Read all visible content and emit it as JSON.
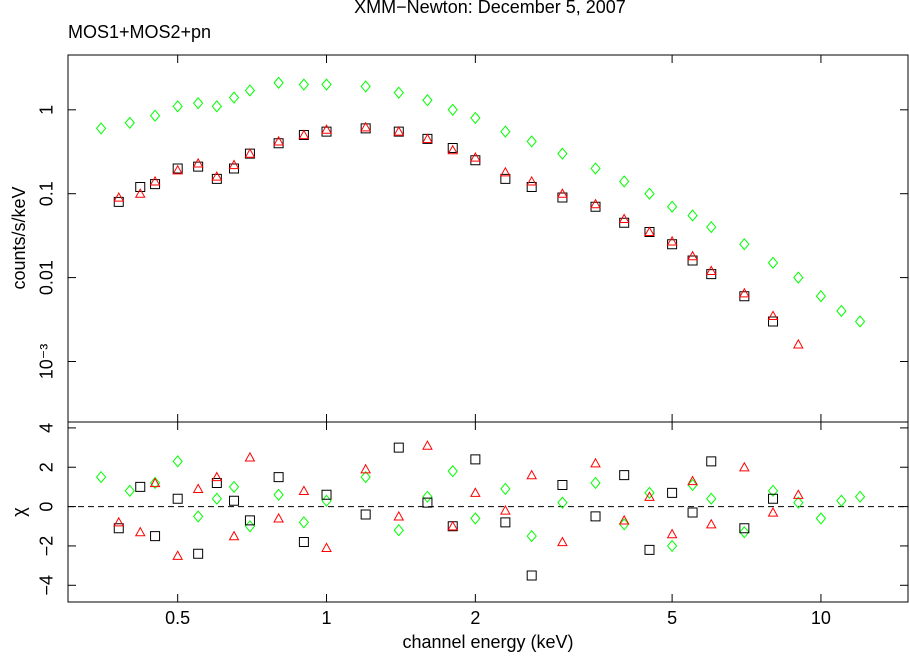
{
  "chart_data": [
    {
      "type": "scatter",
      "title": "XMM−Newton: December 5, 2007",
      "subtitle": "MOS1+MOS2+pn",
      "ylabel": "counts/s/keV",
      "xlog": true,
      "ylog": true,
      "xlim": [
        0.3,
        15
      ],
      "ylim": [
        0.00019,
        4.5
      ],
      "yticks": [
        1,
        0.1,
        0.01,
        {
          "value": 0.001,
          "label": "10⁻³"
        }
      ],
      "series": [
        {
          "color": "#00ff00",
          "marker": "diamond",
          "x": [
            0.35,
            0.4,
            0.45,
            0.5,
            0.55,
            0.6,
            0.65,
            0.7,
            0.8,
            0.9,
            1.0,
            1.2,
            1.4,
            1.6,
            1.8,
            2.0,
            2.3,
            2.6,
            3.0,
            3.5,
            4.0,
            4.5,
            5.0,
            5.5,
            6.0,
            7.0,
            8.0,
            9.0,
            10.0,
            11.0,
            12.0
          ],
          "values": [
            0.6,
            0.7,
            0.85,
            1.1,
            1.2,
            1.1,
            1.4,
            1.7,
            2.1,
            2.0,
            2.0,
            1.9,
            1.6,
            1.3,
            1.0,
            0.8,
            0.55,
            0.42,
            0.3,
            0.2,
            0.14,
            0.1,
            0.07,
            0.055,
            0.04,
            0.025,
            0.015,
            0.01,
            0.006,
            0.004,
            0.003
          ]
        },
        {
          "color": "#000000",
          "marker": "square",
          "x": [
            0.38,
            0.42,
            0.45,
            0.5,
            0.55,
            0.6,
            0.65,
            0.7,
            0.8,
            0.9,
            1.0,
            1.2,
            1.4,
            1.6,
            1.8,
            2.0,
            2.3,
            2.6,
            3.0,
            3.5,
            4.0,
            4.5,
            5.0,
            5.5,
            6.0,
            7.0,
            8.0
          ],
          "values": [
            0.08,
            0.12,
            0.13,
            0.2,
            0.21,
            0.15,
            0.2,
            0.3,
            0.4,
            0.5,
            0.55,
            0.6,
            0.55,
            0.45,
            0.35,
            0.25,
            0.15,
            0.12,
            0.09,
            0.07,
            0.045,
            0.035,
            0.025,
            0.016,
            0.011,
            0.006,
            0.003
          ]
        },
        {
          "color": "#ff0000",
          "marker": "triangle",
          "x": [
            0.38,
            0.42,
            0.45,
            0.5,
            0.55,
            0.6,
            0.65,
            0.7,
            0.8,
            0.9,
            1.0,
            1.2,
            1.4,
            1.6,
            1.8,
            2.0,
            2.3,
            2.6,
            3.0,
            3.5,
            4.0,
            4.5,
            5.0,
            5.5,
            6.0,
            7.0,
            8.0,
            9.0
          ],
          "values": [
            0.09,
            0.1,
            0.14,
            0.19,
            0.23,
            0.16,
            0.22,
            0.3,
            0.42,
            0.5,
            0.58,
            0.62,
            0.55,
            0.45,
            0.33,
            0.27,
            0.18,
            0.14,
            0.1,
            0.075,
            0.05,
            0.035,
            0.027,
            0.018,
            0.012,
            0.0065,
            0.0035,
            0.0016
          ]
        }
      ]
    },
    {
      "type": "scatter",
      "xlabel": "channel energy (keV)",
      "ylabel": "χ",
      "xlog": true,
      "ylog": false,
      "xlim": [
        0.3,
        15
      ],
      "ylim": [
        -4.85,
        4.3
      ],
      "xticks": [
        0.5,
        1,
        2,
        5,
        10
      ],
      "yticks": [
        {
          "value": -4,
          "label": "−4"
        },
        {
          "value": -2,
          "label": "−2"
        },
        0,
        2,
        4
      ],
      "reference_line": 0,
      "series": [
        {
          "color": "#00ff00",
          "marker": "diamond",
          "x": [
            0.35,
            0.4,
            0.45,
            0.5,
            0.55,
            0.6,
            0.65,
            0.7,
            0.8,
            0.9,
            1.0,
            1.2,
            1.4,
            1.6,
            1.8,
            2.0,
            2.3,
            2.6,
            3.0,
            3.5,
            4.0,
            4.5,
            5.0,
            5.5,
            6.0,
            7.0,
            8.0,
            9.0,
            10.0,
            11.0,
            12.0
          ],
          "values": [
            1.5,
            0.8,
            1.2,
            2.3,
            -0.5,
            0.4,
            1.0,
            -1.0,
            0.6,
            -0.8,
            0.3,
            1.5,
            -1.2,
            0.5,
            1.8,
            -0.6,
            0.9,
            -1.5,
            0.2,
            1.2,
            -0.9,
            0.7,
            -2.0,
            1.1,
            0.4,
            -1.3,
            0.8,
            0.2,
            -0.6,
            0.3,
            0.5
          ]
        },
        {
          "color": "#000000",
          "marker": "square",
          "x": [
            0.38,
            0.42,
            0.45,
            0.5,
            0.55,
            0.6,
            0.65,
            0.7,
            0.8,
            0.9,
            1.0,
            1.2,
            1.4,
            1.6,
            1.8,
            2.0,
            2.3,
            2.6,
            3.0,
            3.5,
            4.0,
            4.5,
            5.0,
            5.5,
            6.0,
            7.0,
            8.0
          ],
          "values": [
            -1.1,
            1.0,
            -1.5,
            0.4,
            -2.4,
            1.2,
            0.3,
            -0.7,
            1.5,
            -1.8,
            0.6,
            -0.4,
            3.0,
            0.2,
            -1.0,
            2.4,
            -0.8,
            -3.5,
            1.1,
            -0.5,
            1.6,
            -2.2,
            0.7,
            -0.3,
            2.3,
            -1.1,
            0.4
          ]
        },
        {
          "color": "#ff0000",
          "marker": "triangle",
          "x": [
            0.38,
            0.42,
            0.45,
            0.5,
            0.55,
            0.6,
            0.65,
            0.7,
            0.8,
            0.9,
            1.0,
            1.2,
            1.4,
            1.6,
            1.8,
            2.0,
            2.3,
            2.6,
            3.0,
            3.5,
            4.0,
            4.5,
            5.0,
            5.5,
            6.0,
            7.0,
            8.0,
            9.0
          ],
          "values": [
            -0.8,
            -1.3,
            1.2,
            -2.5,
            0.9,
            1.5,
            -1.5,
            2.5,
            -0.6,
            0.8,
            -2.1,
            1.9,
            -0.5,
            3.1,
            -1.0,
            0.7,
            -0.2,
            1.6,
            -1.8,
            2.2,
            -0.7,
            0.5,
            -1.4,
            1.3,
            -0.9,
            2.0,
            -0.3,
            0.6
          ]
        }
      ]
    }
  ]
}
